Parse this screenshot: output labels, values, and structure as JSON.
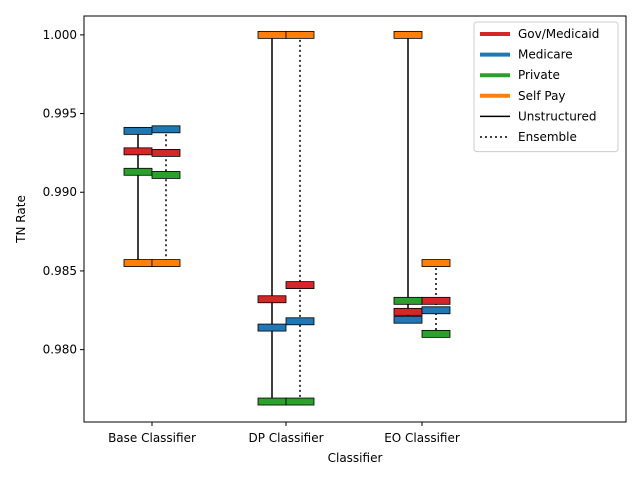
{
  "chart_data": {
    "type": "range",
    "xlabel": "Classifier",
    "ylabel": "TN Rate",
    "categories": [
      "Base Classifier",
      "DP Classifier",
      "EO Classifier"
    ],
    "ylim": [
      0.9754,
      1.0012
    ],
    "yticks": [
      0.98,
      0.985,
      0.99,
      0.995,
      1.0
    ],
    "ytick_labels": [
      "0.980",
      "0.985",
      "0.990",
      "0.995",
      "1.000"
    ],
    "grid": false,
    "legend_position": "top-right",
    "legend": [
      {
        "label": "Gov/Medicaid",
        "kind": "patch",
        "color": "#d62728"
      },
      {
        "label": "Medicare",
        "kind": "patch",
        "color": "#1f77b4"
      },
      {
        "label": "Private",
        "kind": "patch",
        "color": "#2ca02c"
      },
      {
        "label": "Self Pay",
        "kind": "patch",
        "color": "#ff7f0e"
      },
      {
        "label": "Unstructured",
        "kind": "line",
        "style": "solid"
      },
      {
        "label": "Ensemble",
        "kind": "line",
        "style": "dotted"
      }
    ],
    "series": [
      {
        "name": "Unstructured",
        "line_style": "solid",
        "points": [
          {
            "classifier": "Base Classifier",
            "Gov/Medicaid": 0.9926,
            "Medicare": 0.9939,
            "Private": 0.9913,
            "Self Pay": 0.9855
          },
          {
            "classifier": "DP Classifier",
            "Gov/Medicaid": 0.9832,
            "Medicare": 0.9814,
            "Private": 0.9767,
            "Self Pay": 1.0
          },
          {
            "classifier": "EO Classifier",
            "Gov/Medicaid": 0.9824,
            "Medicare": 0.9819,
            "Private": 0.9831,
            "Self Pay": 1.0
          }
        ]
      },
      {
        "name": "Ensemble",
        "line_style": "dotted",
        "points": [
          {
            "classifier": "Base Classifier",
            "Gov/Medicaid": 0.9925,
            "Medicare": 0.994,
            "Private": 0.9911,
            "Self Pay": 0.9855
          },
          {
            "classifier": "DP Classifier",
            "Gov/Medicaid": 0.9841,
            "Medicare": 0.9818,
            "Private": 0.9767,
            "Self Pay": 1.0
          },
          {
            "classifier": "EO Classifier",
            "Gov/Medicaid": 0.9831,
            "Medicare": 0.9825,
            "Private": 0.981,
            "Self Pay": 0.9855
          }
        ]
      }
    ]
  }
}
